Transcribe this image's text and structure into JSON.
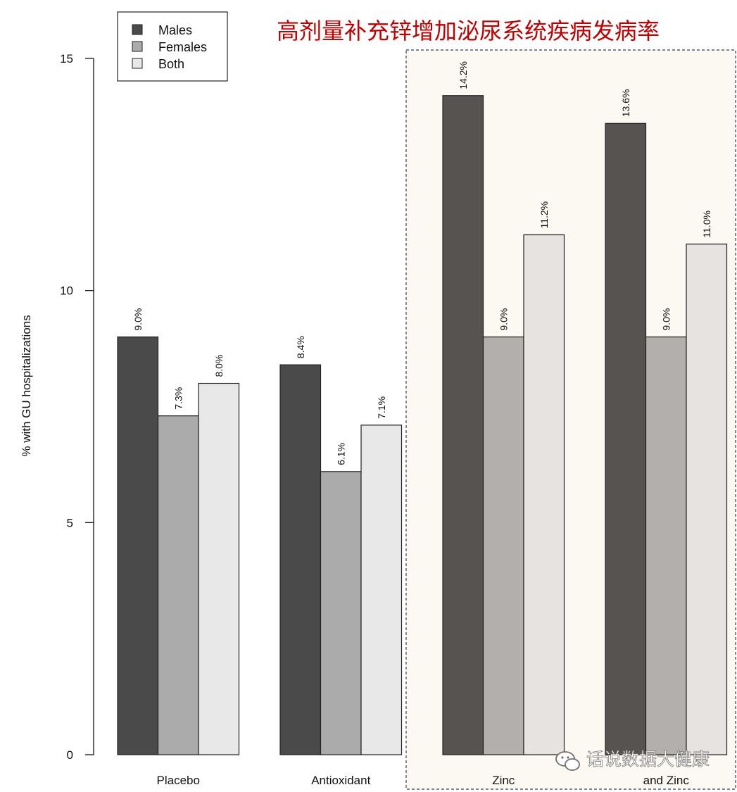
{
  "chart_data": {
    "type": "bar",
    "title": "高剂量补充锌增加泌尿系统疾病发病率",
    "ylabel": "% with GU hospitalizations",
    "xlabel": "",
    "ylim": [
      0,
      15
    ],
    "yticks": [
      0,
      5,
      10,
      15
    ],
    "categories": [
      "Placebo",
      "Antioxidant",
      "Zinc",
      "and Zinc"
    ],
    "series": [
      {
        "name": "Males",
        "values": [
          9.0,
          8.4,
          14.2,
          13.6
        ],
        "labels": [
          "9.0%",
          "8.4%",
          "14.2%",
          "13.6%"
        ],
        "color": "#4a4a4a"
      },
      {
        "name": "Females",
        "values": [
          7.3,
          6.1,
          9.0,
          9.0
        ],
        "labels": [
          "7.3%",
          "6.1%",
          "9.0%",
          "9.0%"
        ],
        "color": "#ababab"
      },
      {
        "name": "Both",
        "values": [
          8.0,
          7.1,
          11.2,
          11.0
        ],
        "labels": [
          "8.0%",
          "7.1%",
          "11.2%",
          "11.0%"
        ],
        "color": "#e8e8e8"
      }
    ],
    "legend_position": "top-left",
    "highlight_categories": [
      "Zinc",
      "and Zinc"
    ],
    "highlight_color": "#fcf9f3",
    "title_color": "#c00000",
    "grid": false
  },
  "watermark": "话说数据大健康"
}
